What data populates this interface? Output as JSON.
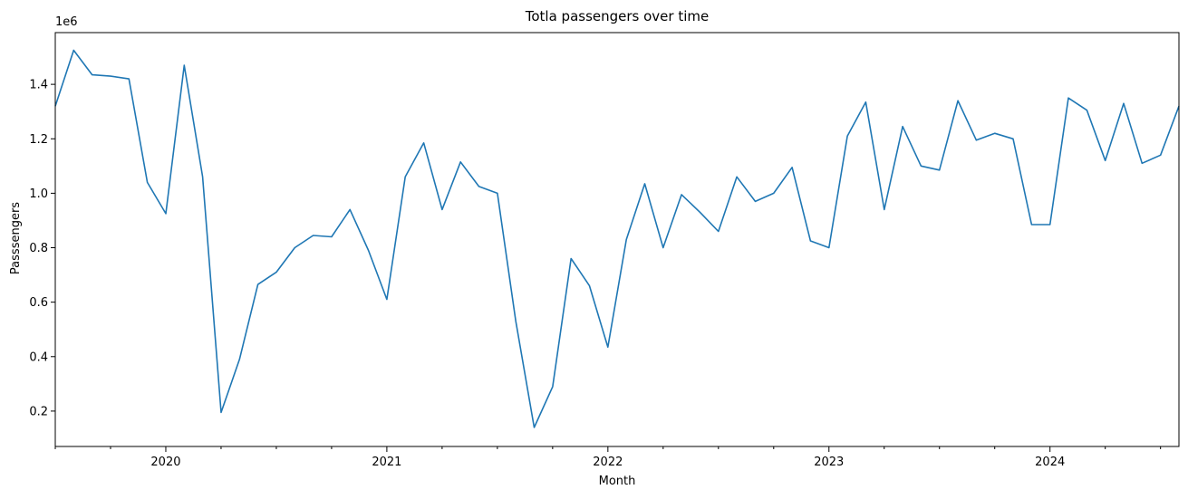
{
  "chart_data": {
    "type": "line",
    "title": "Totla passengers over time",
    "xlabel": "Month",
    "ylabel": "Passsengers",
    "y_offset_label": "1e6",
    "y_scale": 1000000,
    "xlim": [
      "2019-07",
      "2024-08"
    ],
    "ylim": [
      0.07,
      1.59
    ],
    "y_ticks": [
      0.2,
      0.4,
      0.6,
      0.8,
      1.0,
      1.2,
      1.4
    ],
    "y_tick_labels": [
      "0.2",
      "0.4",
      "0.6",
      "0.8",
      "1.0",
      "1.2",
      "1.4"
    ],
    "x_ticks": [
      "2020-01",
      "2021-01",
      "2022-01",
      "2023-01",
      "2024-01"
    ],
    "x_tick_labels": [
      "2020",
      "2021",
      "2022",
      "2023",
      "2024"
    ],
    "x_minor_ticks_months": [
      1,
      4,
      7,
      10
    ],
    "grid": false,
    "series": [
      {
        "color": "#1f77b4",
        "x": [
          "2019-07",
          "2019-08",
          "2019-09",
          "2019-10",
          "2019-11",
          "2019-12",
          "2020-01",
          "2020-02",
          "2020-03",
          "2020-04",
          "2020-05",
          "2020-06",
          "2020-07",
          "2020-08",
          "2020-09",
          "2020-10",
          "2020-11",
          "2020-12",
          "2021-01",
          "2021-02",
          "2021-03",
          "2021-04",
          "2021-05",
          "2021-06",
          "2021-07",
          "2021-08",
          "2021-09",
          "2021-10",
          "2021-11",
          "2021-12",
          "2022-01",
          "2022-02",
          "2022-03",
          "2022-04",
          "2022-05",
          "2022-06",
          "2022-07",
          "2022-08",
          "2022-09",
          "2022-10",
          "2022-11",
          "2022-12",
          "2023-01",
          "2023-02",
          "2023-03",
          "2023-04",
          "2023-05",
          "2023-06",
          "2023-07",
          "2023-08",
          "2023-09",
          "2023-10",
          "2023-11",
          "2023-12",
          "2024-01",
          "2024-02",
          "2024-03",
          "2024-04",
          "2024-05",
          "2024-06",
          "2024-07",
          "2024-08"
        ],
        "y": [
          1.32,
          1.525,
          1.435,
          1.43,
          1.42,
          1.04,
          0.925,
          1.47,
          1.06,
          0.195,
          0.39,
          0.665,
          0.71,
          0.8,
          0.845,
          0.84,
          0.94,
          0.79,
          0.61,
          1.06,
          1.185,
          0.94,
          1.115,
          1.025,
          1.0,
          0.53,
          0.14,
          0.29,
          0.76,
          0.66,
          0.435,
          0.83,
          1.035,
          0.8,
          0.995,
          0.93,
          0.86,
          1.06,
          0.97,
          1.0,
          1.095,
          0.825,
          0.8,
          1.21,
          1.335,
          0.94,
          1.245,
          1.1,
          1.085,
          1.34,
          1.195,
          1.22,
          1.2,
          0.885,
          0.885,
          1.35,
          1.305,
          1.12,
          1.33,
          1.11,
          1.14,
          1.32
        ]
      }
    ]
  }
}
